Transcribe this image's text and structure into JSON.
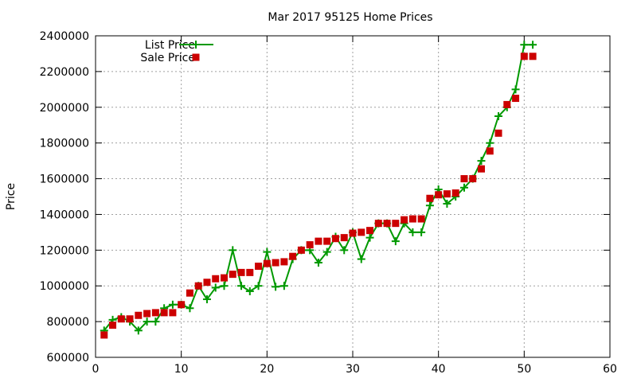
{
  "chart_data": {
    "type": "line",
    "title": "Mar 2017 95125 Home Prices",
    "xlabel": "",
    "ylabel": "Price",
    "xlim": [
      0,
      60
    ],
    "ylim": [
      600000,
      2400000
    ],
    "xticks": [
      "0",
      "10",
      "20",
      "30",
      "40",
      "50",
      "60"
    ],
    "yticks": [
      "600000",
      "800000",
      "1000000",
      "1200000",
      "1400000",
      "1600000",
      "1800000",
      "2000000",
      "2200000",
      "2400000"
    ],
    "grid": true,
    "legend_position": "top-left",
    "series": [
      {
        "name": "List Price",
        "style": "line-plus",
        "color": "#009900",
        "x": [
          1,
          2,
          3,
          4,
          5,
          6,
          7,
          8,
          9,
          10,
          11,
          12,
          13,
          14,
          15,
          16,
          17,
          18,
          19,
          20,
          21,
          22,
          23,
          24,
          25,
          26,
          27,
          28,
          29,
          30,
          31,
          32,
          33,
          34,
          35,
          36,
          37,
          38,
          39,
          40,
          41,
          42,
          43,
          44,
          45,
          46,
          47,
          48,
          49,
          50,
          51
        ],
        "y": [
          750000,
          810000,
          825000,
          800000,
          750000,
          800000,
          800000,
          875000,
          895000,
          895000,
          875000,
          1000000,
          925000,
          990000,
          1000000,
          1200000,
          1000000,
          970000,
          1000000,
          1190000,
          995000,
          1000000,
          1150000,
          1200000,
          1200000,
          1130000,
          1190000,
          1275000,
          1200000,
          1300000,
          1150000,
          1270000,
          1350000,
          1350000,
          1250000,
          1350000,
          1300000,
          1300000,
          1450000,
          1540000,
          1460000,
          1500000,
          1550000,
          1600000,
          1700000,
          1800000,
          1950000,
          2000000,
          2100000,
          2350000,
          2350000
        ]
      },
      {
        "name": "Sale Price",
        "style": "square",
        "color": "#cc0000",
        "x": [
          1,
          2,
          3,
          4,
          5,
          6,
          7,
          8,
          9,
          10,
          11,
          12,
          13,
          14,
          15,
          16,
          17,
          18,
          19,
          20,
          21,
          22,
          23,
          24,
          25,
          26,
          27,
          28,
          29,
          30,
          31,
          32,
          33,
          34,
          35,
          36,
          37,
          38,
          39,
          40,
          41,
          42,
          43,
          44,
          45,
          46,
          47,
          48,
          49,
          50,
          51
        ],
        "y": [
          725000,
          780000,
          815000,
          815000,
          835000,
          845000,
          850000,
          850000,
          850000,
          895000,
          960000,
          1000000,
          1020000,
          1040000,
          1045000,
          1065000,
          1075000,
          1075000,
          1110000,
          1125000,
          1130000,
          1135000,
          1165000,
          1200000,
          1230000,
          1250000,
          1250000,
          1265000,
          1270000,
          1295000,
          1300000,
          1310000,
          1350000,
          1350000,
          1350000,
          1370000,
          1375000,
          1375000,
          1490000,
          1510000,
          1515000,
          1520000,
          1600000,
          1600000,
          1655000,
          1755000,
          1855000,
          2015000,
          2050000,
          2285000,
          2285000
        ]
      }
    ]
  }
}
